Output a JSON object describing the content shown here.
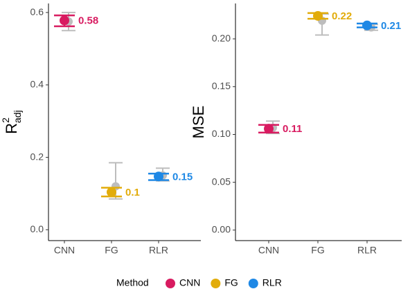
{
  "chart_data": [
    {
      "type": "errorbar",
      "ylabel": {
        "base": "R",
        "sup": "2",
        "sub": "adj"
      },
      "categories": [
        "CNN",
        "FG",
        "RLR"
      ],
      "colors": [
        "#d81b60",
        "#e2ac0a",
        "#1e88e5"
      ],
      "values": [
        0.578,
        0.104,
        0.147
      ],
      "lower": [
        0.562,
        0.092,
        0.137
      ],
      "upper": [
        0.592,
        0.116,
        0.155
      ],
      "value_labels": [
        "0.58",
        "0.1",
        "0.15"
      ],
      "reference": {
        "color": "#bdbdbd",
        "values": [
          0.575,
          0.12,
          0.15
        ],
        "lower": [
          0.55,
          0.085,
          0.135
        ],
        "upper": [
          0.6,
          0.185,
          0.17
        ]
      },
      "ylim": [
        -0.03,
        0.625
      ],
      "yticks": [
        {
          "value": 0,
          "label": "0.0"
        },
        0.2,
        0.4,
        0.6
      ]
    },
    {
      "type": "errorbar",
      "ylabel": {
        "base": "MSE"
      },
      "categories": [
        "CNN",
        "FG",
        "RLR"
      ],
      "colors": [
        "#d81b60",
        "#e2ac0a",
        "#1e88e5"
      ],
      "values": [
        0.106,
        0.224,
        0.214
      ],
      "lower": [
        0.102,
        0.221,
        0.212
      ],
      "upper": [
        0.11,
        0.227,
        0.216
      ],
      "value_labels": [
        "0.11",
        "0.22",
        "0.21"
      ],
      "reference": {
        "color": "#bdbdbd",
        "values": [
          0.107,
          0.219,
          0.212
        ],
        "lower": [
          0.101,
          0.204,
          0.209
        ],
        "upper": [
          0.114,
          0.226,
          0.215
        ]
      },
      "ylim": [
        -0.011,
        0.237
      ],
      "yticks": [
        {
          "value": 0,
          "label": "0.00"
        },
        0.05,
        {
          "value": 0.1,
          "label": "0.10"
        },
        0.15,
        {
          "value": 0.2,
          "label": "0.20"
        }
      ]
    }
  ],
  "legend": {
    "title": "Method",
    "entries": [
      "CNN",
      "FG",
      "RLR"
    ],
    "colors": [
      "#d81b60",
      "#e2ac0a",
      "#1e88e5"
    ]
  }
}
